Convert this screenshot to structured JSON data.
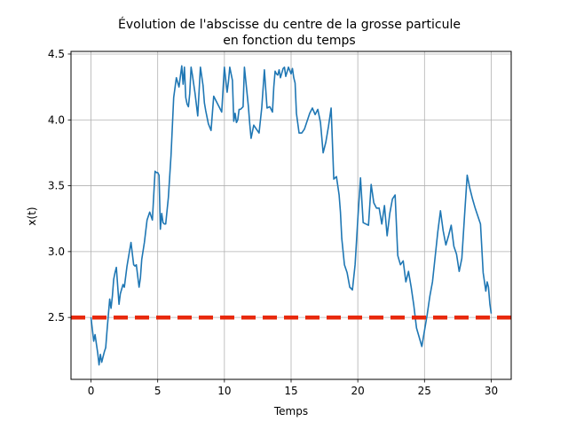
{
  "chart_data": {
    "type": "line",
    "title_lines": [
      "Évolution de l'abscisse du centre de la grosse particule",
      "en fonction du temps"
    ],
    "xlabel": "Temps",
    "ylabel": "x(t)",
    "xlim": [
      -1.5,
      31.5
    ],
    "ylim": [
      2.03,
      4.52
    ],
    "xticks": [
      0,
      5,
      10,
      15,
      20,
      25,
      30
    ],
    "xtick_labels": [
      "0",
      "5",
      "10",
      "15",
      "20",
      "25",
      "30"
    ],
    "yticks": [
      2.5,
      3.0,
      3.5,
      4.0,
      4.5
    ],
    "ytick_labels": [
      "2.5",
      "3.0",
      "3.5",
      "4.0",
      "4.5"
    ],
    "grid": true,
    "series": [
      {
        "color": "#1f77b4",
        "style": "solid",
        "x": [
          0,
          0.2,
          0.3,
          0.4,
          0.5,
          0.6,
          0.7,
          0.8,
          0.9,
          1.0,
          1.1,
          1.2,
          1.4,
          1.5,
          1.6,
          1.7,
          1.8,
          1.9,
          2.0,
          2.1,
          2.2,
          2.4,
          2.5,
          2.7,
          2.8,
          3.0,
          3.2,
          3.3,
          3.4,
          3.6,
          3.7,
          3.8,
          4.0,
          4.2,
          4.4,
          4.6,
          4.8,
          4.9,
          5.0,
          5.1,
          5.2,
          5.3,
          5.4,
          5.5,
          5.6,
          5.8,
          6.0,
          6.2,
          6.4,
          6.6,
          6.8,
          6.9,
          7.0,
          7.1,
          7.2,
          7.3,
          7.4,
          7.5,
          7.6,
          7.8,
          8.0,
          8.2,
          8.4,
          8.5,
          8.6,
          8.8,
          9.0,
          9.2,
          9.4,
          9.6,
          9.8,
          10.0,
          10.2,
          10.3,
          10.4,
          10.5,
          10.6,
          10.7,
          10.8,
          10.9,
          11.0,
          11.1,
          11.2,
          11.3,
          11.4,
          11.5,
          11.8,
          11.9,
          12.0,
          12.2,
          12.4,
          12.6,
          12.8,
          13.0,
          13.2,
          13.4,
          13.6,
          13.7,
          13.8,
          13.9,
          14.0,
          14.1,
          14.2,
          14.4,
          14.5,
          14.6,
          14.8,
          15.0,
          15.1,
          15.2,
          15.3,
          15.4,
          15.6,
          15.8,
          16.0,
          16.2,
          16.4,
          16.6,
          16.8,
          17.0,
          17.2,
          17.4,
          17.6,
          17.8,
          18.0,
          18.2,
          18.4,
          18.6,
          18.7,
          18.8,
          18.9,
          19.0,
          19.2,
          19.4,
          19.6,
          19.8,
          20.0,
          20.2,
          20.4,
          20.6,
          20.8,
          21.0,
          21.2,
          21.4,
          21.6,
          21.8,
          22.0,
          22.2,
          22.4,
          22.6,
          22.8,
          23.0,
          23.2,
          23.4,
          23.6,
          23.8,
          24.0,
          24.2,
          24.4,
          24.6,
          24.8,
          25.0,
          25.2,
          25.4,
          25.6,
          25.8,
          26.0,
          26.2,
          26.4,
          26.6,
          26.8,
          27.0,
          27.2,
          27.4,
          27.6,
          27.8,
          28.0,
          28.2,
          28.4,
          28.6,
          28.8,
          29.0,
          29.2,
          29.4,
          29.6,
          29.7,
          29.8,
          29.9,
          30.0
        ],
        "y": [
          2.5,
          2.32,
          2.37,
          2.3,
          2.23,
          2.14,
          2.22,
          2.16,
          2.2,
          2.24,
          2.27,
          2.4,
          2.64,
          2.57,
          2.66,
          2.79,
          2.84,
          2.88,
          2.74,
          2.6,
          2.68,
          2.75,
          2.73,
          2.89,
          2.95,
          3.07,
          2.9,
          2.89,
          2.9,
          2.73,
          2.8,
          2.94,
          3.07,
          3.24,
          3.3,
          3.24,
          3.61,
          3.6,
          3.6,
          3.58,
          3.17,
          3.29,
          3.22,
          3.21,
          3.21,
          3.41,
          3.73,
          4.17,
          4.32,
          4.25,
          4.41,
          4.27,
          4.4,
          4.17,
          4.12,
          4.1,
          4.2,
          4.4,
          4.34,
          4.2,
          4.03,
          4.4,
          4.26,
          4.13,
          4.07,
          3.97,
          3.92,
          4.18,
          4.14,
          4.1,
          4.06,
          4.4,
          4.21,
          4.29,
          4.4,
          4.35,
          4.3,
          3.99,
          4.05,
          3.98,
          4.0,
          4.08,
          4.08,
          4.09,
          4.1,
          4.4,
          4.1,
          3.97,
          3.86,
          3.96,
          3.93,
          3.9,
          4.09,
          4.38,
          4.09,
          4.1,
          4.06,
          4.25,
          4.37,
          4.35,
          4.34,
          4.38,
          4.32,
          4.39,
          4.4,
          4.33,
          4.4,
          4.35,
          4.39,
          4.32,
          4.28,
          4.05,
          3.9,
          3.9,
          3.93,
          3.99,
          4.05,
          4.09,
          4.04,
          4.08,
          3.98,
          3.75,
          3.83,
          3.95,
          4.09,
          3.55,
          3.57,
          3.43,
          3.3,
          3.1,
          3.0,
          2.9,
          2.84,
          2.73,
          2.71,
          2.9,
          3.25,
          3.56,
          3.22,
          3.21,
          3.2,
          3.51,
          3.37,
          3.33,
          3.33,
          3.21,
          3.35,
          3.12,
          3.29,
          3.4,
          3.43,
          2.97,
          2.9,
          2.93,
          2.77,
          2.85,
          2.73,
          2.59,
          2.42,
          2.35,
          2.28,
          2.4,
          2.52,
          2.66,
          2.77,
          2.96,
          3.15,
          3.31,
          3.16,
          3.05,
          3.12,
          3.2,
          3.04,
          2.98,
          2.85,
          2.95,
          3.27,
          3.58,
          3.48,
          3.4,
          3.33,
          3.27,
          3.21,
          2.84,
          2.7,
          2.77,
          2.73,
          2.6,
          2.53
        ]
      },
      {
        "color": "#e8290b",
        "style": "dashed",
        "x": [
          -1.5,
          31.5
        ],
        "y": [
          2.5,
          2.5
        ]
      }
    ]
  }
}
